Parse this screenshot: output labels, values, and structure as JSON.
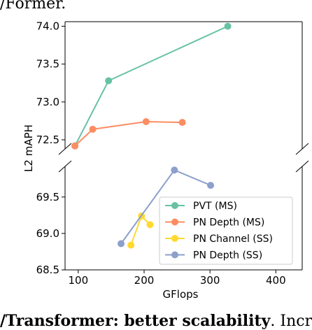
{
  "captions": {
    "top": "/Former.",
    "bottom_bold": "/Transformer: better scalability",
    "bottom_rest": ". Incre"
  },
  "chart_data": {
    "type": "line",
    "xlabel": "GFlops",
    "ylabel": "L2 mAPH",
    "xlim": [
      80,
      440
    ],
    "x_ticks": [
      100,
      200,
      300,
      400
    ],
    "x_tick_labels": [
      "100",
      "200",
      "300",
      "400"
    ],
    "broken_y_axis": true,
    "top_panel": {
      "ylim": [
        72.38,
        74.06
      ],
      "y_ticks": [
        72.5,
        73.0,
        73.5,
        74.0
      ],
      "y_tick_labels": [
        "72.5",
        "73.0",
        "73.5",
        "74.0"
      ]
    },
    "bottom_panel": {
      "ylim": [
        68.5,
        69.92
      ],
      "y_ticks": [
        68.5,
        69.0,
        69.5
      ],
      "y_tick_labels": [
        "68.5",
        "69.0",
        "69.5"
      ]
    },
    "grid": false,
    "legend_position": "lower-right",
    "series": [
      {
        "name": "PVT (MS)",
        "color": "#66c2a5",
        "panel": "top",
        "points": [
          [
            95,
            72.42
          ],
          [
            146,
            73.28
          ],
          [
            327,
            74.0
          ]
        ]
      },
      {
        "name": "PN Depth (MS)",
        "color": "#fc8d62",
        "panel": "top",
        "points": [
          [
            95,
            72.42
          ],
          [
            122,
            72.64
          ],
          [
            203,
            72.74
          ],
          [
            258,
            72.73
          ]
        ]
      },
      {
        "name": "PN Channel (SS)",
        "color": "#ffd92f",
        "panel": "bottom",
        "points": [
          [
            180,
            68.84
          ],
          [
            196,
            69.24
          ],
          [
            209,
            69.12
          ]
        ]
      },
      {
        "name": "PN Depth (SS)",
        "color": "#8da0cb",
        "panel": "bottom",
        "points": [
          [
            165,
            68.86
          ],
          [
            246,
            69.87
          ],
          [
            301,
            69.66
          ]
        ]
      }
    ]
  }
}
